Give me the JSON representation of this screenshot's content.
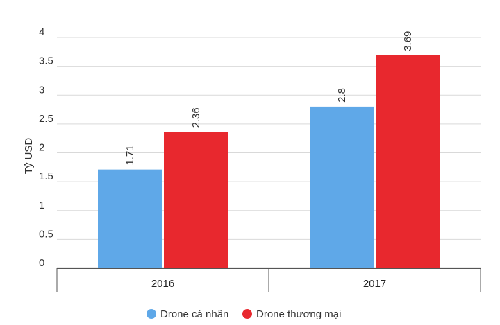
{
  "chart_data": {
    "type": "bar",
    "title": "",
    "xlabel": "",
    "ylabel": "Tỷ USD",
    "ylim": [
      0,
      4
    ],
    "yticks": [
      0,
      0.5,
      1,
      1.5,
      2,
      2.5,
      3,
      3.5,
      4
    ],
    "yticks_text": [
      "0",
      "0.5",
      "1",
      "1.5",
      "2",
      "2.5",
      "3",
      "3.5",
      "4"
    ],
    "categories": [
      "2016",
      "2017"
    ],
    "grid": true,
    "legend_position": "bottom",
    "series": [
      {
        "name": "Drone cá nhân",
        "color": "#5fa8e8",
        "values": [
          1.71,
          2.8
        ],
        "labels": [
          "1.71",
          "2.8"
        ]
      },
      {
        "name": "Drone thương mại",
        "color": "#e8282e",
        "values": [
          2.36,
          3.69
        ],
        "labels": [
          "2.36",
          "3.69"
        ]
      }
    ]
  }
}
